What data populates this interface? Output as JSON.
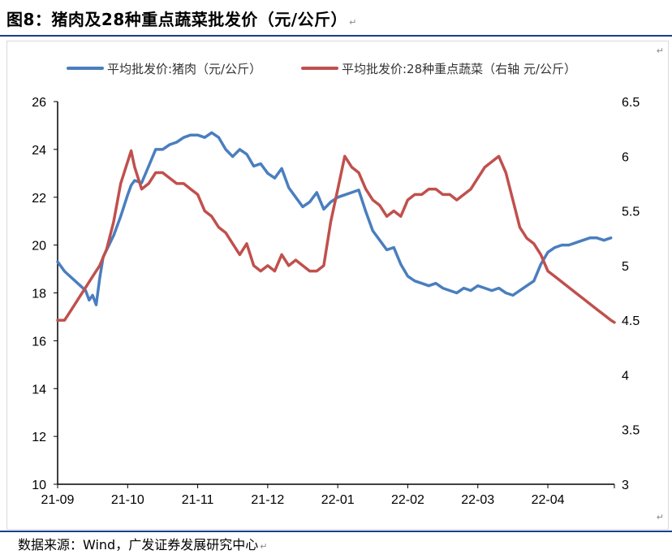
{
  "figure": {
    "title": "图8：猪肉及28种重点蔬菜批发价（元/公斤）",
    "source": "数据来源：Wind，广发证券发展研究中心",
    "return_mark": "↵"
  },
  "chart_data": {
    "type": "line",
    "title": "",
    "xlabel": "",
    "ylabel": "",
    "x_tick_labels": [
      "21-09",
      "21-10",
      "21-11",
      "21-12",
      "22-01",
      "22-02",
      "22-03",
      "22-04"
    ],
    "y_left": {
      "lim": [
        10,
        26
      ],
      "ticks": [
        10,
        12,
        14,
        16,
        18,
        20,
        22,
        24,
        26
      ]
    },
    "y_right": {
      "lim": [
        3,
        6.5
      ],
      "ticks": [
        "3",
        "3.5",
        "4",
        "4.5",
        "5",
        "5.5",
        "6",
        "6.5"
      ]
    },
    "x_range": [
      0,
      7.95
    ],
    "grid": false,
    "legend_position": "top",
    "series": [
      {
        "name": "平均批发价:猪肉（元/公斤）",
        "axis": "left",
        "color": "#4a7ebf",
        "x": [
          0,
          0.1,
          0.25,
          0.4,
          0.45,
          0.5,
          0.55,
          0.6,
          0.65,
          0.7,
          0.8,
          0.9,
          1.0,
          1.05,
          1.1,
          1.2,
          1.3,
          1.4,
          1.5,
          1.6,
          1.7,
          1.8,
          1.9,
          2.0,
          2.1,
          2.2,
          2.3,
          2.4,
          2.5,
          2.6,
          2.7,
          2.8,
          2.9,
          3.0,
          3.1,
          3.2,
          3.3,
          3.4,
          3.5,
          3.6,
          3.7,
          3.8,
          3.9,
          4.0,
          4.1,
          4.2,
          4.3,
          4.4,
          4.5,
          4.6,
          4.7,
          4.8,
          4.9,
          5.0,
          5.1,
          5.2,
          5.3,
          5.4,
          5.5,
          5.6,
          5.7,
          5.8,
          5.9,
          6.0,
          6.1,
          6.2,
          6.3,
          6.4,
          6.5,
          6.6,
          6.7,
          6.8,
          6.9,
          7.0,
          7.1,
          7.2,
          7.3,
          7.4,
          7.5,
          7.6,
          7.7,
          7.8,
          7.9
        ],
        "y": [
          19.3,
          18.9,
          18.5,
          18.1,
          17.7,
          17.9,
          17.5,
          18.6,
          19.5,
          19.8,
          20.4,
          21.2,
          22.1,
          22.5,
          22.7,
          22.6,
          23.3,
          24.0,
          24.0,
          24.2,
          24.3,
          24.5,
          24.6,
          24.6,
          24.5,
          24.7,
          24.5,
          24.0,
          23.7,
          24.0,
          23.8,
          23.3,
          23.4,
          23.0,
          22.8,
          23.2,
          22.4,
          22.0,
          21.6,
          21.8,
          22.2,
          21.5,
          21.8,
          22.0,
          22.1,
          22.2,
          22.3,
          21.4,
          20.6,
          20.2,
          19.8,
          19.9,
          19.2,
          18.7,
          18.5,
          18.4,
          18.3,
          18.4,
          18.2,
          18.1,
          18.0,
          18.2,
          18.1,
          18.3,
          18.2,
          18.1,
          18.2,
          18.0,
          17.9,
          18.1,
          18.3,
          18.5,
          19.2,
          19.7,
          19.9,
          20.0,
          20.0,
          20.1,
          20.2,
          20.3,
          20.3,
          20.2,
          20.3
        ]
      },
      {
        "name": "平均批发价:28种重点蔬菜（右轴 元/公斤）",
        "axis": "right",
        "color": "#c0504d",
        "x": [
          0,
          0.1,
          0.2,
          0.3,
          0.4,
          0.5,
          0.6,
          0.7,
          0.8,
          0.9,
          1.0,
          1.05,
          1.1,
          1.2,
          1.3,
          1.4,
          1.5,
          1.6,
          1.7,
          1.8,
          1.9,
          2.0,
          2.1,
          2.2,
          2.3,
          2.4,
          2.5,
          2.6,
          2.7,
          2.8,
          2.9,
          3.0,
          3.1,
          3.2,
          3.3,
          3.4,
          3.5,
          3.6,
          3.7,
          3.8,
          3.9,
          4.0,
          4.1,
          4.2,
          4.3,
          4.4,
          4.5,
          4.6,
          4.7,
          4.8,
          4.9,
          5.0,
          5.1,
          5.2,
          5.3,
          5.4,
          5.5,
          5.6,
          5.7,
          5.8,
          5.9,
          6.0,
          6.1,
          6.2,
          6.3,
          6.4,
          6.5,
          6.6,
          6.7,
          6.8,
          6.9,
          7.0,
          7.1,
          7.2,
          7.3,
          7.4,
          7.5,
          7.6,
          7.7,
          7.8,
          7.9,
          7.95
        ],
        "y": [
          4.5,
          4.5,
          4.6,
          4.7,
          4.8,
          4.9,
          5.0,
          5.15,
          5.4,
          5.75,
          5.95,
          6.05,
          5.9,
          5.7,
          5.75,
          5.85,
          5.85,
          5.8,
          5.75,
          5.75,
          5.7,
          5.65,
          5.5,
          5.45,
          5.35,
          5.3,
          5.2,
          5.1,
          5.2,
          5.0,
          4.95,
          5.0,
          4.95,
          5.1,
          5.0,
          5.05,
          5.0,
          4.95,
          4.95,
          5.0,
          5.4,
          5.7,
          6.0,
          5.9,
          5.85,
          5.7,
          5.6,
          5.55,
          5.45,
          5.5,
          5.45,
          5.6,
          5.65,
          5.65,
          5.7,
          5.7,
          5.65,
          5.65,
          5.6,
          5.65,
          5.7,
          5.8,
          5.9,
          5.95,
          6.0,
          5.85,
          5.6,
          5.35,
          5.25,
          5.2,
          5.1,
          4.95,
          4.9,
          4.85,
          4.8,
          4.75,
          4.7,
          4.65,
          4.6,
          4.55,
          4.5,
          4.48
        ]
      }
    ]
  }
}
